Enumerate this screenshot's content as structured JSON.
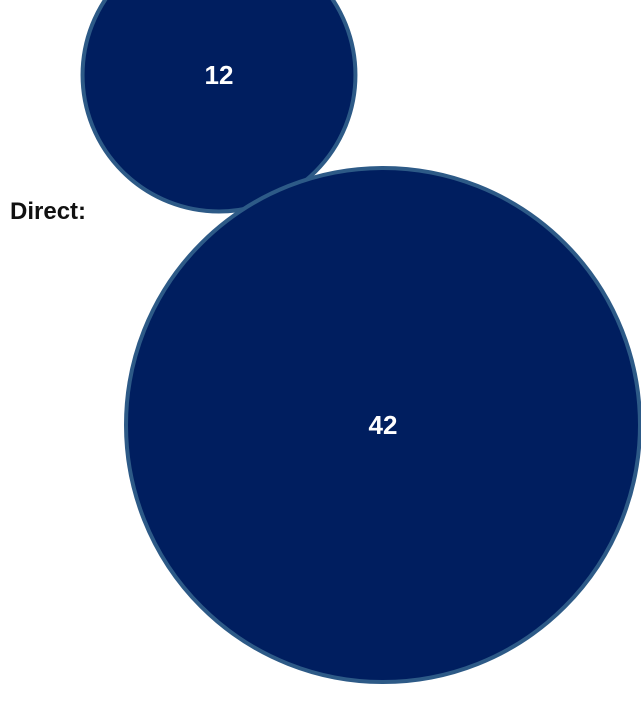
{
  "chart_data": {
    "type": "bubble",
    "legend": "none",
    "grid": false,
    "row_label": "Direct:",
    "bubbles": [
      {
        "value": 12
      },
      {
        "value": 42
      }
    ]
  },
  "colors": {
    "bubble_fill": "#001e5f",
    "bubble_stroke": "#2d5a87",
    "value_text": "#ffffff",
    "label_text": "#111111"
  }
}
